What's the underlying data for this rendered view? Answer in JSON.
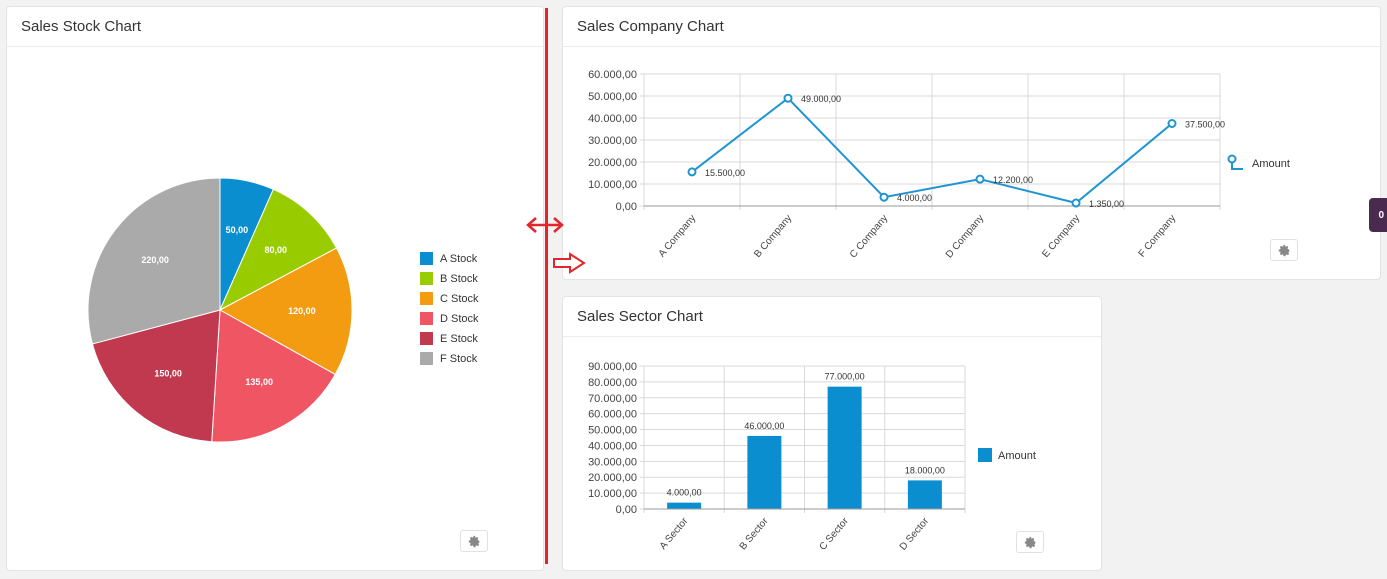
{
  "panels": {
    "stock": {
      "title": "Sales Stock Chart"
    },
    "company": {
      "title": "Sales Company Chart"
    },
    "sector": {
      "title": "Sales Sector Chart"
    }
  },
  "side_badge": {
    "text": "0"
  },
  "icons": {
    "settings": "gear-icon",
    "resize": "double-arrow-icon",
    "drag_hint": "outlined-right-arrow-icon"
  },
  "colors": {
    "divider": "#e3262b",
    "line": "#1f94d2",
    "bar": "#0a8ed0"
  },
  "chart_data": [
    {
      "type": "pie",
      "title": "Sales Stock Chart",
      "categories": [
        "A Stock",
        "B Stock",
        "C Stock",
        "D Stock",
        "E Stock",
        "F Stock"
      ],
      "values": [
        50,
        80,
        120,
        135,
        150,
        220
      ],
      "labels": [
        "50,00",
        "80,00",
        "120,00",
        "135,00",
        "150,00",
        "220,00"
      ],
      "colors": [
        "#0a8ed0",
        "#99cc00",
        "#f39c12",
        "#f05564",
        "#c0394f",
        "#aaaaaa"
      ],
      "legend": "right"
    },
    {
      "type": "line",
      "title": "Sales Company Chart",
      "categories": [
        "A Company",
        "B Company",
        "C Company",
        "D Company",
        "E Company",
        "F Company"
      ],
      "series": [
        {
          "name": "Amount",
          "values": [
            15500,
            49000,
            4000,
            12200,
            1350,
            37500
          ],
          "labels": [
            "15.500,00",
            "49.000,00",
            "4.000,00",
            "12.200,00",
            "1.350,00",
            "37.500,00"
          ]
        }
      ],
      "ylim": [
        0,
        60000
      ],
      "yticks": [
        0,
        10000,
        20000,
        30000,
        40000,
        50000,
        60000
      ],
      "ytick_labels": [
        "0,00",
        "10.000,00",
        "20.000,00",
        "30.000,00",
        "40.000,00",
        "50.000,00",
        "60.000,00"
      ],
      "grid": true,
      "legend": "right"
    },
    {
      "type": "bar",
      "title": "Sales Sector Chart",
      "categories": [
        "A Sector",
        "B Sector",
        "C Sector",
        "D Sector"
      ],
      "series": [
        {
          "name": "Amount",
          "values": [
            4000,
            46000,
            77000,
            18000
          ],
          "labels": [
            "4.000,00",
            "46.000,00",
            "77.000,00",
            "18.000,00"
          ]
        }
      ],
      "ylim": [
        0,
        90000
      ],
      "yticks": [
        0,
        10000,
        20000,
        30000,
        40000,
        50000,
        60000,
        70000,
        80000,
        90000
      ],
      "ytick_labels": [
        "0,00",
        "10.000,00",
        "20.000,00",
        "30.000,00",
        "40.000,00",
        "50.000,00",
        "60.000,00",
        "70.000,00",
        "80.000,00",
        "90.000,00"
      ],
      "grid": true,
      "legend": "right"
    }
  ]
}
